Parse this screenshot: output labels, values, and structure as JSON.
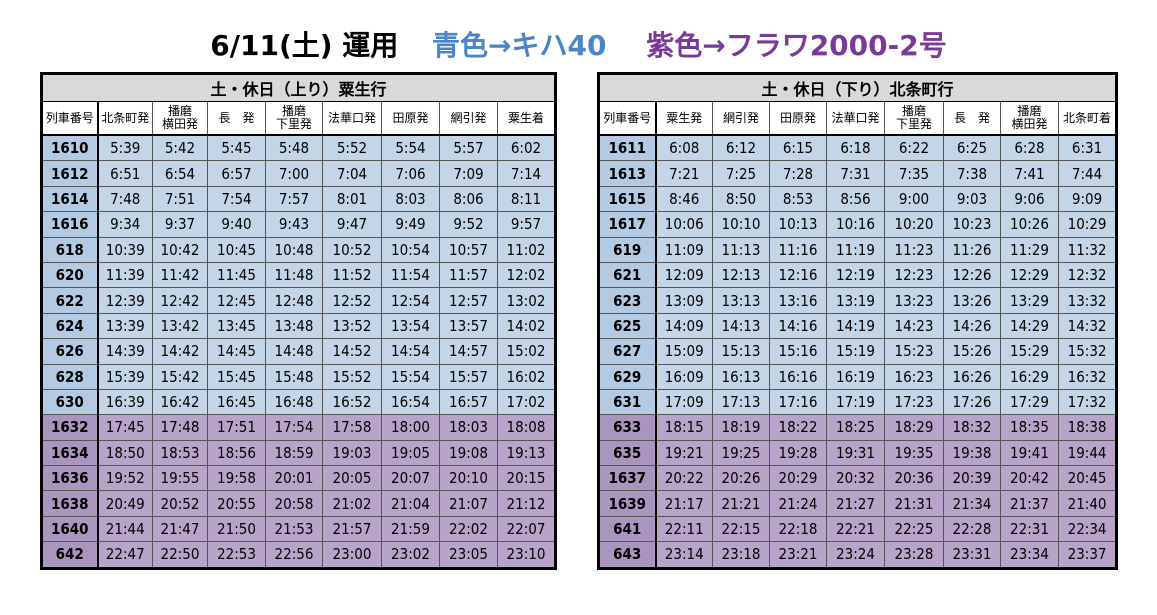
{
  "title": {
    "main": "6/11(土)  運用",
    "blue_note": "青色→キハ40",
    "purple_note": "紫色→フラワ2000-2号"
  },
  "colors": {
    "blue_row": "#c5d5e8",
    "purple_row": "#b7a4c8",
    "blue_text": "#4a86c5",
    "purple_text": "#7a3a98"
  },
  "up": {
    "heading": "土・休日（上り）粟生行",
    "columns": [
      "列車番号",
      "北条町発",
      "播磨\n横田発",
      "長　発",
      "播磨\n下里発",
      "法華口発",
      "田原発",
      "網引発",
      "粟生着"
    ],
    "rows": [
      {
        "color": "blue",
        "cells": [
          "1610",
          "5:39",
          "5:42",
          "5:45",
          "5:48",
          "5:52",
          "5:54",
          "5:57",
          "6:02"
        ]
      },
      {
        "color": "blue",
        "cells": [
          "1612",
          "6:51",
          "6:54",
          "6:57",
          "7:00",
          "7:04",
          "7:06",
          "7:09",
          "7:14"
        ]
      },
      {
        "color": "blue",
        "cells": [
          "1614",
          "7:48",
          "7:51",
          "7:54",
          "7:57",
          "8:01",
          "8:03",
          "8:06",
          "8:11"
        ]
      },
      {
        "color": "blue",
        "cells": [
          "1616",
          "9:34",
          "9:37",
          "9:40",
          "9:43",
          "9:47",
          "9:49",
          "9:52",
          "9:57"
        ]
      },
      {
        "color": "blue",
        "cells": [
          "618",
          "10:39",
          "10:42",
          "10:45",
          "10:48",
          "10:52",
          "10:54",
          "10:57",
          "11:02"
        ]
      },
      {
        "color": "blue",
        "cells": [
          "620",
          "11:39",
          "11:42",
          "11:45",
          "11:48",
          "11:52",
          "11:54",
          "11:57",
          "12:02"
        ]
      },
      {
        "color": "blue",
        "cells": [
          "622",
          "12:39",
          "12:42",
          "12:45",
          "12:48",
          "12:52",
          "12:54",
          "12:57",
          "13:02"
        ]
      },
      {
        "color": "blue",
        "cells": [
          "624",
          "13:39",
          "13:42",
          "13:45",
          "13:48",
          "13:52",
          "13:54",
          "13:57",
          "14:02"
        ]
      },
      {
        "color": "blue",
        "cells": [
          "626",
          "14:39",
          "14:42",
          "14:45",
          "14:48",
          "14:52",
          "14:54",
          "14:57",
          "15:02"
        ]
      },
      {
        "color": "blue",
        "cells": [
          "628",
          "15:39",
          "15:42",
          "15:45",
          "15:48",
          "15:52",
          "15:54",
          "15:57",
          "16:02"
        ]
      },
      {
        "color": "blue",
        "cells": [
          "630",
          "16:39",
          "16:42",
          "16:45",
          "16:48",
          "16:52",
          "16:54",
          "16:57",
          "17:02"
        ]
      },
      {
        "color": "purple",
        "cells": [
          "1632",
          "17:45",
          "17:48",
          "17:51",
          "17:54",
          "17:58",
          "18:00",
          "18:03",
          "18:08"
        ]
      },
      {
        "color": "purple",
        "cells": [
          "1634",
          "18:50",
          "18:53",
          "18:56",
          "18:59",
          "19:03",
          "19:05",
          "19:08",
          "19:13"
        ]
      },
      {
        "color": "purple",
        "cells": [
          "1636",
          "19:52",
          "19:55",
          "19:58",
          "20:01",
          "20:05",
          "20:07",
          "20:10",
          "20:15"
        ]
      },
      {
        "color": "purple",
        "cells": [
          "1638",
          "20:49",
          "20:52",
          "20:55",
          "20:58",
          "21:02",
          "21:04",
          "21:07",
          "21:12"
        ]
      },
      {
        "color": "purple",
        "cells": [
          "1640",
          "21:44",
          "21:47",
          "21:50",
          "21:53",
          "21:57",
          "21:59",
          "22:02",
          "22:07"
        ]
      },
      {
        "color": "purple",
        "cells": [
          "642",
          "22:47",
          "22:50",
          "22:53",
          "22:56",
          "23:00",
          "23:02",
          "23:05",
          "23:10"
        ]
      }
    ]
  },
  "down": {
    "heading": "土・休日（下り）北条町行",
    "columns": [
      "列車番号",
      "粟生発",
      "網引発",
      "田原発",
      "法華口発",
      "播磨\n下里発",
      "長　発",
      "播磨\n横田発",
      "北条町着"
    ],
    "rows": [
      {
        "color": "blue",
        "cells": [
          "1611",
          "6:08",
          "6:12",
          "6:15",
          "6:18",
          "6:22",
          "6:25",
          "6:28",
          "6:31"
        ]
      },
      {
        "color": "blue",
        "cells": [
          "1613",
          "7:21",
          "7:25",
          "7:28",
          "7:31",
          "7:35",
          "7:38",
          "7:41",
          "7:44"
        ]
      },
      {
        "color": "blue",
        "cells": [
          "1615",
          "8:46",
          "8:50",
          "8:53",
          "8:56",
          "9:00",
          "9:03",
          "9:06",
          "9:09"
        ]
      },
      {
        "color": "blue",
        "cells": [
          "1617",
          "10:06",
          "10:10",
          "10:13",
          "10:16",
          "10:20",
          "10:23",
          "10:26",
          "10:29"
        ]
      },
      {
        "color": "blue",
        "cells": [
          "619",
          "11:09",
          "11:13",
          "11:16",
          "11:19",
          "11:23",
          "11:26",
          "11:29",
          "11:32"
        ]
      },
      {
        "color": "blue",
        "cells": [
          "621",
          "12:09",
          "12:13",
          "12:16",
          "12:19",
          "12:23",
          "12:26",
          "12:29",
          "12:32"
        ]
      },
      {
        "color": "blue",
        "cells": [
          "623",
          "13:09",
          "13:13",
          "13:16",
          "13:19",
          "13:23",
          "13:26",
          "13:29",
          "13:32"
        ]
      },
      {
        "color": "blue",
        "cells": [
          "625",
          "14:09",
          "14:13",
          "14:16",
          "14:19",
          "14:23",
          "14:26",
          "14:29",
          "14:32"
        ]
      },
      {
        "color": "blue",
        "cells": [
          "627",
          "15:09",
          "15:13",
          "15:16",
          "15:19",
          "15:23",
          "15:26",
          "15:29",
          "15:32"
        ]
      },
      {
        "color": "blue",
        "cells": [
          "629",
          "16:09",
          "16:13",
          "16:16",
          "16:19",
          "16:23",
          "16:26",
          "16:29",
          "16:32"
        ]
      },
      {
        "color": "blue",
        "cells": [
          "631",
          "17:09",
          "17:13",
          "17:16",
          "17:19",
          "17:23",
          "17:26",
          "17:29",
          "17:32"
        ]
      },
      {
        "color": "purple",
        "cells": [
          "633",
          "18:15",
          "18:19",
          "18:22",
          "18:25",
          "18:29",
          "18:32",
          "18:35",
          "18:38"
        ]
      },
      {
        "color": "purple",
        "cells": [
          "635",
          "19:21",
          "19:25",
          "19:28",
          "19:31",
          "19:35",
          "19:38",
          "19:41",
          "19:44"
        ]
      },
      {
        "color": "purple",
        "cells": [
          "1637",
          "20:22",
          "20:26",
          "20:29",
          "20:32",
          "20:36",
          "20:39",
          "20:42",
          "20:45"
        ]
      },
      {
        "color": "purple",
        "cells": [
          "1639",
          "21:17",
          "21:21",
          "21:24",
          "21:27",
          "21:31",
          "21:34",
          "21:37",
          "21:40"
        ]
      },
      {
        "color": "purple",
        "cells": [
          "641",
          "22:11",
          "22:15",
          "22:18",
          "22:21",
          "22:25",
          "22:28",
          "22:31",
          "22:34"
        ]
      },
      {
        "color": "purple",
        "cells": [
          "643",
          "23:14",
          "23:18",
          "23:21",
          "23:24",
          "23:28",
          "23:31",
          "23:34",
          "23:37"
        ]
      }
    ]
  }
}
